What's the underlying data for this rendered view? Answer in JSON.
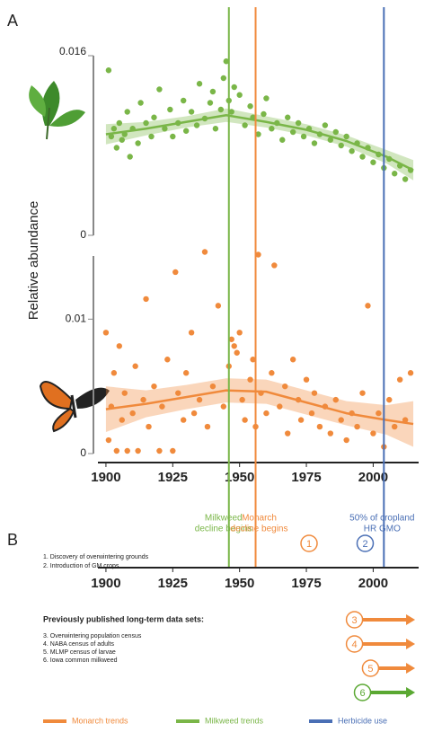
{
  "panel_labels": [
    "A",
    "B"
  ],
  "y_axis_label": "Relative abundance",
  "chart_data": [
    {
      "type": "scatter",
      "name": "Milkweed",
      "color": "#7ab648",
      "xlim": [
        1897,
        2017
      ],
      "ylim": [
        0,
        0.016
      ],
      "yticks": [
        0,
        0.016
      ],
      "x": [
        1901,
        1902,
        1903,
        1904,
        1905,
        1906,
        1907,
        1908,
        1909,
        1910,
        1912,
        1913,
        1915,
        1917,
        1918,
        1920,
        1922,
        1924,
        1925,
        1927,
        1929,
        1930,
        1932,
        1934,
        1935,
        1937,
        1939,
        1940,
        1941,
        1943,
        1944,
        1945,
        1946,
        1947,
        1948,
        1950,
        1952,
        1954,
        1955,
        1957,
        1959,
        1960,
        1962,
        1964,
        1966,
        1968,
        1970,
        1972,
        1974,
        1976,
        1978,
        1980,
        1982,
        1984,
        1986,
        1988,
        1990,
        1992,
        1994,
        1996,
        1998,
        2000,
        2002,
        2004,
        2006,
        2008,
        2010,
        2012,
        2014
      ],
      "values": [
        0.0147,
        0.0088,
        0.0095,
        0.0078,
        0.01,
        0.0085,
        0.009,
        0.011,
        0.007,
        0.0095,
        0.0082,
        0.0118,
        0.01,
        0.0088,
        0.0105,
        0.013,
        0.0095,
        0.0112,
        0.0088,
        0.01,
        0.012,
        0.0093,
        0.011,
        0.0098,
        0.0135,
        0.0104,
        0.0118,
        0.0128,
        0.0095,
        0.0112,
        0.014,
        0.0155,
        0.012,
        0.011,
        0.0132,
        0.0125,
        0.0098,
        0.0115,
        0.0105,
        0.009,
        0.0108,
        0.0122,
        0.0095,
        0.01,
        0.0085,
        0.0105,
        0.0092,
        0.01,
        0.0088,
        0.0095,
        0.0082,
        0.009,
        0.0098,
        0.0085,
        0.0092,
        0.008,
        0.0088,
        0.0075,
        0.0082,
        0.007,
        0.0078,
        0.0065,
        0.0072,
        0.006,
        0.0068,
        0.0055,
        0.0062,
        0.005,
        0.0058
      ],
      "trend": {
        "x": [
          1900,
          1915,
          1930,
          1945,
          1960,
          1975,
          1990,
          2005,
          2015
        ],
        "values": [
          0.009,
          0.0095,
          0.0101,
          0.0107,
          0.0101,
          0.0094,
          0.0084,
          0.007,
          0.0058
        ],
        "lower": [
          0.0081,
          0.0089,
          0.0096,
          0.0101,
          0.0096,
          0.0089,
          0.0079,
          0.0064,
          0.0049
        ],
        "upper": [
          0.0099,
          0.0101,
          0.0106,
          0.0113,
          0.0106,
          0.0099,
          0.0089,
          0.0076,
          0.0067
        ]
      }
    },
    {
      "type": "scatter",
      "name": "Monarch",
      "color": "#f08a3c",
      "xlim": [
        1897,
        2017
      ],
      "ylim": [
        0,
        0.0147
      ],
      "yticks": [
        0,
        0.01
      ],
      "xticks": [
        1900,
        1925,
        1950,
        1975,
        2000
      ],
      "x": [
        1900,
        1901,
        1902,
        1903,
        1904,
        1905,
        1906,
        1907,
        1908,
        1910,
        1911,
        1912,
        1914,
        1915,
        1916,
        1918,
        1920,
        1921,
        1923,
        1925,
        1926,
        1927,
        1929,
        1930,
        1932,
        1933,
        1935,
        1937,
        1938,
        1940,
        1942,
        1944,
        1946,
        1947,
        1948,
        1949,
        1950,
        1951,
        1952,
        1954,
        1955,
        1956,
        1957,
        1958,
        1960,
        1962,
        1963,
        1965,
        1967,
        1968,
        1970,
        1972,
        1973,
        1975,
        1977,
        1978,
        1980,
        1982,
        1984,
        1986,
        1988,
        1990,
        1992,
        1994,
        1996,
        1998,
        2000,
        2002,
        2004,
        2006,
        2008,
        2010,
        2012,
        2014
      ],
      "values": [
        0.009,
        0.001,
        0.0035,
        0.006,
        0.0002,
        0.008,
        0.0025,
        0.0045,
        0.0002,
        0.003,
        0.0065,
        0.0002,
        0.004,
        0.0115,
        0.002,
        0.005,
        0.0002,
        0.0035,
        0.007,
        0.0002,
        0.0135,
        0.0045,
        0.0025,
        0.006,
        0.009,
        0.003,
        0.004,
        0.015,
        0.002,
        0.005,
        0.011,
        0.0035,
        0.0065,
        0.0085,
        0.008,
        0.0075,
        0.009,
        0.004,
        0.0025,
        0.0055,
        0.007,
        0.002,
        0.0148,
        0.0045,
        0.003,
        0.006,
        0.014,
        0.0035,
        0.005,
        0.0015,
        0.007,
        0.004,
        0.0025,
        0.0055,
        0.003,
        0.0045,
        0.002,
        0.0035,
        0.0015,
        0.004,
        0.0025,
        0.001,
        0.003,
        0.002,
        0.0045,
        0.011,
        0.0015,
        0.003,
        0.0005,
        0.004,
        0.002,
        0.0055,
        0.0025,
        0.006
      ],
      "trend": {
        "x": [
          1900,
          1915,
          1930,
          1945,
          1960,
          1975,
          1990,
          2005,
          2015
        ],
        "values": [
          0.0033,
          0.0037,
          0.0042,
          0.0047,
          0.0046,
          0.0038,
          0.003,
          0.0025,
          0.0022
        ],
        "lower": [
          0.0016,
          0.0027,
          0.0033,
          0.0038,
          0.0037,
          0.0029,
          0.0021,
          0.0014,
          0.0005
        ],
        "upper": [
          0.005,
          0.0047,
          0.0051,
          0.0056,
          0.0055,
          0.0047,
          0.0039,
          0.0036,
          0.0039
        ]
      }
    }
  ],
  "events": [
    {
      "label": [
        "Milkweed",
        "decline begins"
      ],
      "x": 1946,
      "color": "#7ab648"
    },
    {
      "label": [
        "Monarch",
        "decline begins"
      ],
      "x": 1956,
      "color": "#f08a3c"
    },
    {
      "label": [
        "50% of cropland",
        "HR GMO"
      ],
      "x": 2004,
      "color": "#4a6fb5"
    }
  ],
  "timeline": {
    "xticks": [
      1900,
      1925,
      1950,
      1975,
      2000
    ],
    "notes": [
      "1. Discovery of overwintering grounds",
      "2. Introduction of GM crops"
    ],
    "markers": [
      {
        "label": "1",
        "x": 1976,
        "color": "#f08a3c"
      },
      {
        "label": "2",
        "x": 1997,
        "color": "#4a6fb5"
      }
    ],
    "datasets_title": "Previously published long-term data sets:",
    "datasets": [
      {
        "label": "3",
        "text": "3. Overwintering population census",
        "start": 1993,
        "end": 2015,
        "color": "#f08a3c"
      },
      {
        "label": "4",
        "text": "4. NABA census of adults",
        "start": 1993,
        "end": 2015,
        "color": "#f08a3c"
      },
      {
        "label": "5",
        "text": "5. MLMP census of larvae",
        "start": 1999,
        "end": 2015,
        "color": "#f08a3c"
      },
      {
        "label": "6",
        "text": "6. Iowa common milkweed",
        "start": 1996,
        "end": 2015,
        "color": "#5aa832"
      }
    ],
    "legend": [
      {
        "name": "Monarch trends",
        "color": "#f08a3c"
      },
      {
        "name": "Milkweed trends",
        "color": "#7ab648"
      },
      {
        "name": "Herbicide use",
        "color": "#4a6fb5"
      }
    ]
  }
}
